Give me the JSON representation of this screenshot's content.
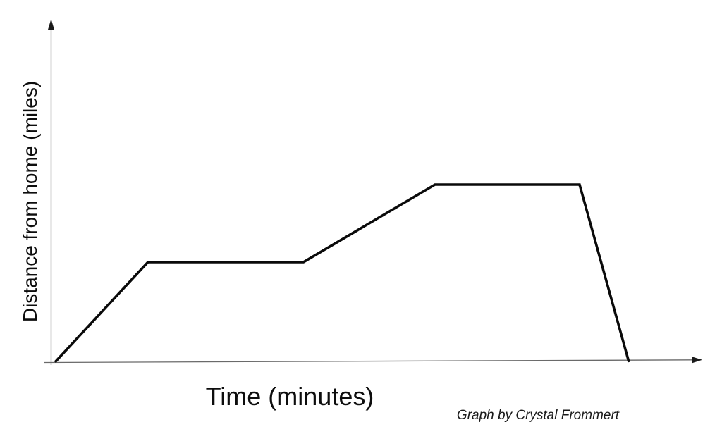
{
  "page": {
    "background_color": "#ffffff"
  },
  "chart_data": {
    "type": "line",
    "title": "",
    "xlabel": "Time (minutes)",
    "ylabel": "Distance from home (miles)",
    "attribution": "Graph by Crystal Frommert",
    "x_axis": {
      "label": "Time (minutes)",
      "tick_labels": [],
      "has_arrowhead": true
    },
    "y_axis": {
      "label": "Distance from home (miles)",
      "tick_labels": [],
      "has_arrowhead": true
    },
    "value_units": "relative 0-100 (axes are unlabeled / qualitative)",
    "series": [
      {
        "name": "distance-from-home",
        "points": [
          [
            0,
            0
          ],
          [
            16.2,
            56.4
          ],
          [
            43.3,
            56.4
          ],
          [
            66.2,
            100
          ],
          [
            91.4,
            100
          ],
          [
            100,
            0
          ]
        ]
      }
    ],
    "shape_summary": "rises from origin, flat plateau, rises again to higher plateau, steep drop back to zero",
    "style": {
      "line_color": "#0a0a0a",
      "axis_color": "#6a6a6a",
      "arrow_color": "#1a1a1a",
      "text_color": "#0d0d0d"
    }
  }
}
